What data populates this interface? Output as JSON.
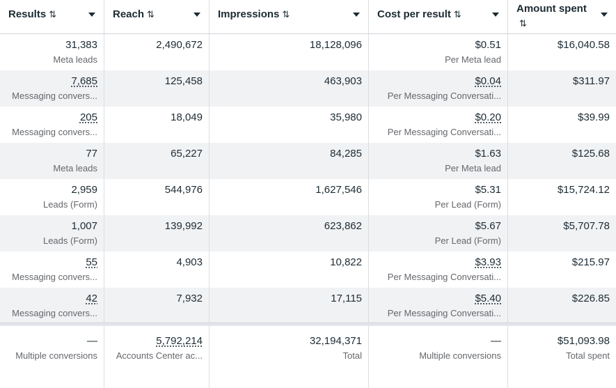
{
  "header": {
    "sort_glyph": "⇅",
    "columns": [
      {
        "label": "Results"
      },
      {
        "label": "Reach"
      },
      {
        "label": "Impressions"
      },
      {
        "label": "Cost per result"
      },
      {
        "label": "Amount spent"
      }
    ]
  },
  "rows": [
    {
      "results": "31,383",
      "results_sub": "Meta leads",
      "reach": "2,490,672",
      "impressions": "18,128,096",
      "cost": "$0.51",
      "cost_sub": "Per Meta lead",
      "amount": "$16,040.58"
    },
    {
      "results": "7,685",
      "results_sub": "Messaging convers...",
      "reach": "125,458",
      "impressions": "463,903",
      "cost": "$0.04",
      "cost_sub": "Per Messaging Conversati...",
      "amount": "$311.97"
    },
    {
      "results": "205",
      "results_sub": "Messaging convers...",
      "reach": "18,049",
      "impressions": "35,980",
      "cost": "$0.20",
      "cost_sub": "Per Messaging Conversati...",
      "amount": "$39.99"
    },
    {
      "results": "77",
      "results_sub": "Meta leads",
      "reach": "65,227",
      "impressions": "84,285",
      "cost": "$1.63",
      "cost_sub": "Per Meta lead",
      "amount": "$125.68"
    },
    {
      "results": "2,959",
      "results_sub": "Leads (Form)",
      "reach": "544,976",
      "impressions": "1,627,546",
      "cost": "$5.31",
      "cost_sub": "Per Lead (Form)",
      "amount": "$15,724.12"
    },
    {
      "results": "1,007",
      "results_sub": "Leads (Form)",
      "reach": "139,992",
      "impressions": "623,862",
      "cost": "$5.67",
      "cost_sub": "Per Lead (Form)",
      "amount": "$5,707.78"
    },
    {
      "results": "55",
      "results_sub": "Messaging convers...",
      "reach": "4,903",
      "impressions": "10,822",
      "cost": "$3.93",
      "cost_sub": "Per Messaging Conversati...",
      "amount": "$215.97"
    },
    {
      "results": "42",
      "results_sub": "Messaging convers...",
      "reach": "7,932",
      "impressions": "17,115",
      "cost": "$5.40",
      "cost_sub": "Per Messaging Conversati...",
      "amount": "$226.85"
    }
  ],
  "summary": {
    "results": "—",
    "results_sub": "Multiple conversions",
    "reach": "5,792,214",
    "reach_sub": "Accounts Center ac...",
    "impressions": "32,194,371",
    "impressions_sub": "Total",
    "cost": "—",
    "cost_sub": "Multiple conversions",
    "amount": "$51,093.98",
    "amount_sub": "Total spent"
  }
}
